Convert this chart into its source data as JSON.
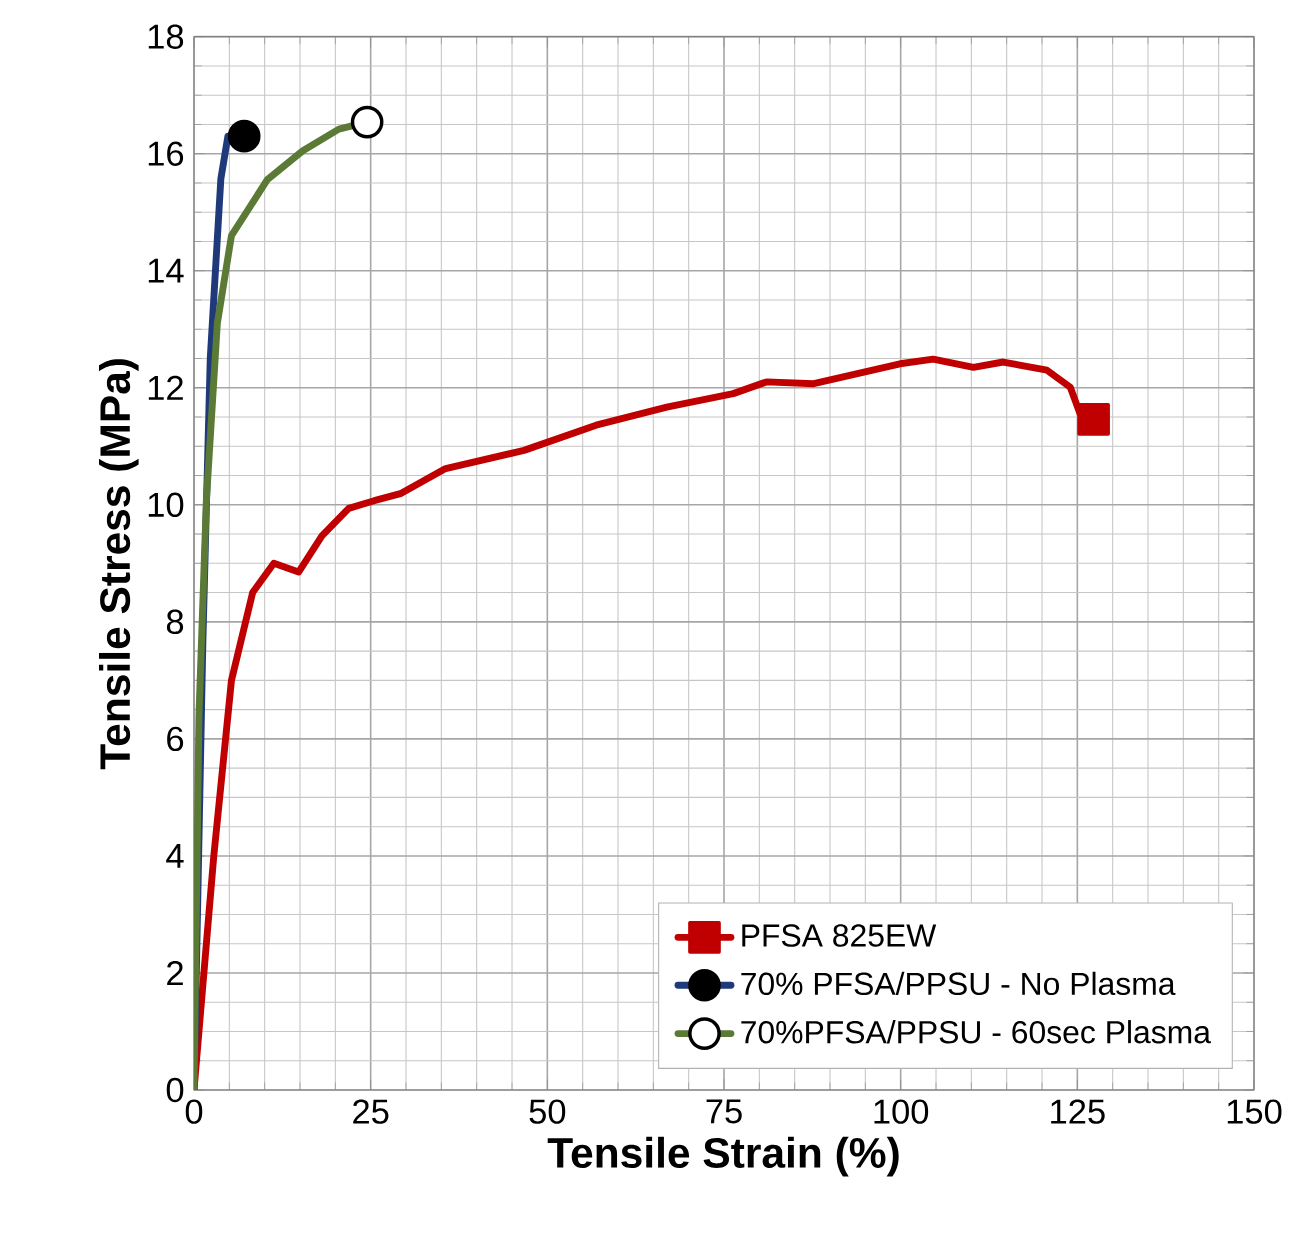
{
  "chart_data": {
    "type": "line",
    "xlabel": "Tensile Strain (%)",
    "ylabel": "Tensile Stress (MPa)",
    "xlim": [
      0,
      150
    ],
    "ylim": [
      0,
      18
    ],
    "xticks": [
      0,
      25,
      50,
      75,
      100,
      125,
      150
    ],
    "yticks": [
      0,
      2,
      4,
      6,
      8,
      10,
      12,
      14,
      16,
      18
    ],
    "grid": true,
    "legend": "bottom right",
    "line_style": "solid",
    "series": [
      {
        "name": "PFSA 825EW",
        "color": "#c00000",
        "x": [
          0,
          2.8,
          5.3,
          8.3,
          11.3,
          14.8,
          18.1,
          21.9,
          25.5,
          29.2,
          35.6,
          46.7,
          56.9,
          66.9,
          76.3,
          81,
          87.7,
          99.9,
          104.6,
          110.3,
          114.5,
          120.7,
          124,
          125.4,
          127.3
        ],
        "values": [
          0,
          4.0,
          7.0,
          8.5,
          9.0,
          8.85,
          9.47,
          9.94,
          10.07,
          10.19,
          10.62,
          10.93,
          11.36,
          11.67,
          11.9,
          12.1,
          12.07,
          12.41,
          12.49,
          12.35,
          12.44,
          12.3,
          12.01,
          11.55,
          11.46
        ]
      },
      {
        "name": "70% PFSA/PPSU - No Plasma",
        "color": "#1f3a7a",
        "x": [
          0,
          1.25,
          2.3,
          3.8,
          4.8,
          7.1
        ],
        "values": [
          0,
          7.65,
          12.5,
          15.57,
          16.3,
          16.3
        ]
      },
      {
        "name": "70%PFSA/PPSU - 60sec Plasma",
        "color": "#5a7a35",
        "x": [
          0,
          0.7,
          1.75,
          3.3,
          5.3,
          10.4,
          15.4,
          20.5,
          24.5
        ],
        "values": [
          0,
          6.4,
          10.07,
          13.1,
          14.6,
          15.56,
          16.05,
          16.42,
          16.54
        ]
      }
    ]
  }
}
